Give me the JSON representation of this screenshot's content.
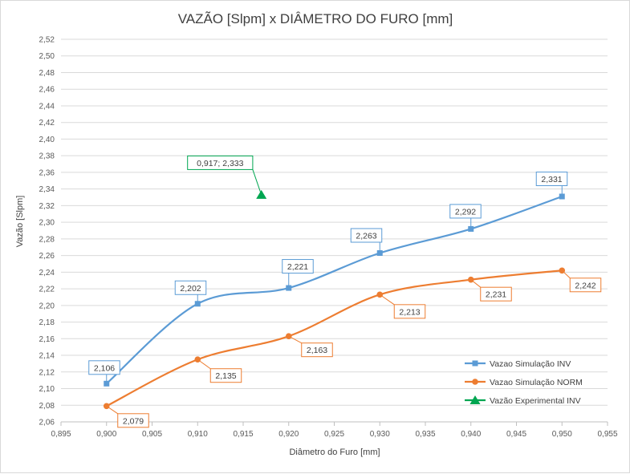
{
  "chart_data": {
    "type": "scatter",
    "title": "VAZÃO [Slpm] x DIÂMETRO DO FURO [mm]",
    "xlabel": "Diâmetro do Furo [mm]",
    "ylabel": "Vazão [Slpm]",
    "xlim": [
      0.895,
      0.955
    ],
    "ylim": [
      2.06,
      2.52
    ],
    "x_ticks": [
      "0,895",
      "0,900",
      "0,905",
      "0,910",
      "0,915",
      "0,920",
      "0,925",
      "0,930",
      "0,935",
      "0,940",
      "0,945",
      "0,950",
      "0,955"
    ],
    "y_ticks": [
      "2,06",
      "2,08",
      "2,10",
      "2,12",
      "2,14",
      "2,16",
      "2,18",
      "2,20",
      "2,22",
      "2,24",
      "2,26",
      "2,28",
      "2,30",
      "2,32",
      "2,34",
      "2,36",
      "2,38",
      "2,40",
      "2,42",
      "2,44",
      "2,46",
      "2,48",
      "2,50",
      "2,52"
    ],
    "grid": "horizontal",
    "legend_position": "bottom-right",
    "series": [
      {
        "name": "Vazao Simulação INV",
        "color": "#5b9bd5",
        "marker": "square",
        "smooth": true,
        "x": [
          0.9,
          0.91,
          0.92,
          0.93,
          0.94,
          0.95
        ],
        "y": [
          2.106,
          2.202,
          2.221,
          2.263,
          2.292,
          2.331
        ],
        "labels": [
          "2,106",
          "2,202",
          "2,221",
          "2,263",
          "2,292",
          "2,331"
        ]
      },
      {
        "name": "Vazao Simulação NORM",
        "color": "#ed7d31",
        "marker": "circle",
        "smooth": true,
        "x": [
          0.9,
          0.91,
          0.92,
          0.93,
          0.94,
          0.95
        ],
        "y": [
          2.079,
          2.135,
          2.163,
          2.213,
          2.231,
          2.242
        ],
        "labels": [
          "2,079",
          "2,135",
          "2,163",
          "2,213",
          "2,231",
          "2,242"
        ]
      },
      {
        "name": "Vazão Experimental INV",
        "color": "#00a651",
        "marker": "triangle",
        "smooth": false,
        "x": [
          0.917
        ],
        "y": [
          2.333
        ],
        "labels": [
          "0,917; 2,333"
        ]
      }
    ]
  }
}
